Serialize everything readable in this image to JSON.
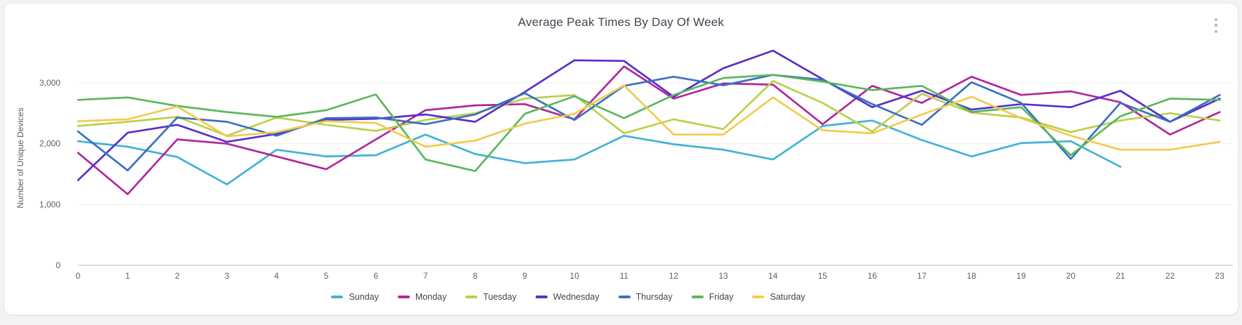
{
  "panel": {
    "title": "Average Peak Times By Day Of Week"
  },
  "chart_data": {
    "type": "line",
    "title": "Average Peak Times By Day Of Week",
    "xlabel": "",
    "ylabel": "Number of Unique Devices",
    "x": [
      0,
      1,
      2,
      3,
      4,
      5,
      6,
      7,
      8,
      9,
      10,
      11,
      12,
      13,
      14,
      15,
      16,
      17,
      18,
      19,
      20,
      21,
      22,
      23
    ],
    "yticks": [
      0,
      1000,
      2000,
      3000
    ],
    "ytick_labels": [
      "0",
      "1,000",
      "2,000",
      "3,000"
    ],
    "ylim": [
      0,
      3700
    ],
    "grid": "horizontal",
    "legend_position": "bottom-center",
    "axis_color": "#c9d1e6",
    "grid_color": "#efefef",
    "series": [
      {
        "name": "Sunday",
        "color": "#41b2d6",
        "values": [
          2040,
          1950,
          1780,
          1330,
          1900,
          1790,
          1810,
          2150,
          1830,
          1680,
          1740,
          2130,
          1990,
          1900,
          1740,
          2290,
          2380,
          2060,
          1790,
          2010,
          2040,
          1620,
          null,
          null
        ]
      },
      {
        "name": "Monday",
        "color": "#b0279c",
        "values": [
          1850,
          1170,
          2070,
          2000,
          1790,
          1580,
          2070,
          2550,
          2630,
          2650,
          2400,
          3270,
          2740,
          2990,
          2970,
          2320,
          2950,
          2670,
          3100,
          2800,
          2860,
          2680,
          2150,
          2520
        ]
      },
      {
        "name": "Tuesday",
        "color": "#bbd04a",
        "values": [
          2290,
          2360,
          2440,
          2130,
          2430,
          2310,
          2210,
          2390,
          2500,
          2740,
          2800,
          2170,
          2400,
          2240,
          3030,
          2670,
          2200,
          2820,
          2510,
          2430,
          2190,
          2380,
          2500,
          2380
        ]
      },
      {
        "name": "Wednesday",
        "color": "#5a2fc9",
        "values": [
          1400,
          2180,
          2310,
          2030,
          2160,
          2390,
          2410,
          2480,
          2360,
          2850,
          3370,
          3360,
          2770,
          3240,
          3530,
          3060,
          2600,
          2870,
          2560,
          2650,
          2600,
          2870,
          2360,
          2740
        ]
      },
      {
        "name": "Thursday",
        "color": "#3a70c2",
        "values": [
          2200,
          1560,
          2430,
          2360,
          2130,
          2420,
          2430,
          2320,
          2480,
          2830,
          2390,
          2950,
          3100,
          2960,
          3130,
          3050,
          2650,
          2310,
          3010,
          2670,
          1750,
          2670,
          2360,
          2800
        ]
      },
      {
        "name": "Friday",
        "color": "#5bb75b",
        "values": [
          2720,
          2760,
          2620,
          2520,
          2440,
          2550,
          2810,
          1740,
          1550,
          2490,
          2780,
          2420,
          2800,
          3080,
          3130,
          3020,
          2880,
          2950,
          2520,
          2600,
          1810,
          2450,
          2740,
          2720
        ]
      },
      {
        "name": "Saturday",
        "color": "#f2cb4c",
        "values": [
          2370,
          2400,
          2610,
          2120,
          2190,
          2370,
          2340,
          1950,
          2050,
          2330,
          2490,
          2960,
          2150,
          2150,
          2760,
          2220,
          2170,
          2480,
          2770,
          2420,
          2130,
          1900,
          1900,
          2030
        ]
      }
    ]
  }
}
